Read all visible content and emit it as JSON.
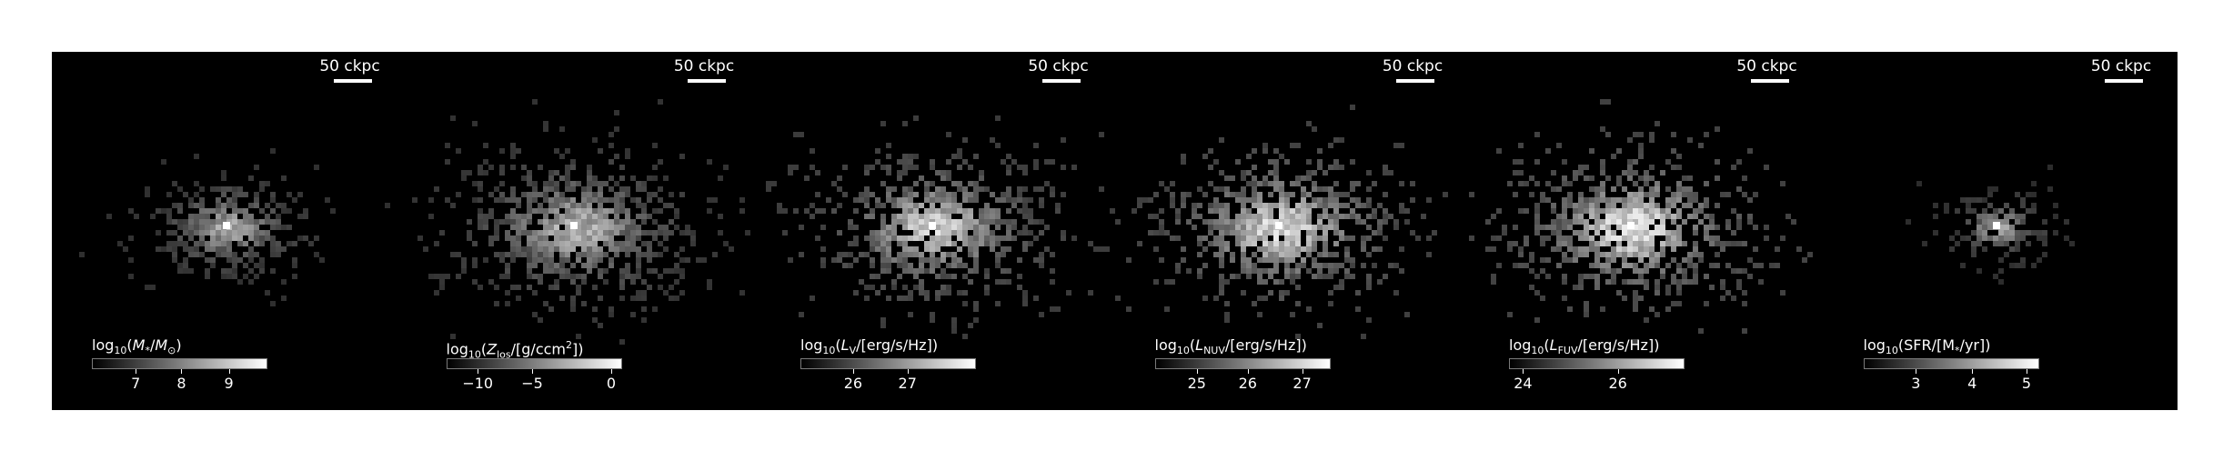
{
  "scalebar_label": "50 ckpc",
  "panels": [
    {
      "label_html": "log<sub>10</sub>(<i>M</i><sub>*</sub>/<i>M</i><sub>⊙</sub>)",
      "ticks": [
        [
          "7",
          0.25
        ],
        [
          "8",
          0.51
        ],
        [
          "9",
          0.78
        ]
      ],
      "spread": 0.7,
      "gain": 0.8
    },
    {
      "label_html": "log<sub>10</sub>(<i>Z</i><sub>los</sub>/[g/ccm<sup>2</sup>])",
      "ticks": [
        [
          "−10",
          0.18
        ],
        [
          "−5",
          0.49
        ],
        [
          "0",
          0.94
        ]
      ],
      "spread": 1.05,
      "gain": 0.85
    },
    {
      "label_html": "log<sub>10</sub>(<i>L</i><sub>V</sub>/[erg/s/Hz])",
      "ticks": [
        [
          "26",
          0.3
        ],
        [
          "27",
          0.61
        ]
      ],
      "spread": 1.0,
      "gain": 1.0
    },
    {
      "label_html": "log<sub>10</sub>(<i>L</i><sub>NUV</sub>/[erg/s/Hz])",
      "ticks": [
        [
          "25",
          0.24
        ],
        [
          "26",
          0.53
        ],
        [
          "27",
          0.84
        ]
      ],
      "spread": 1.05,
      "gain": 1.05
    },
    {
      "label_html": "log<sub>10</sub>(<i>L</i><sub>FUV</sub>/[erg/s/Hz])",
      "ticks": [
        [
          "24",
          0.08
        ],
        [
          "26",
          0.62
        ]
      ],
      "spread": 1.05,
      "gain": 1.1
    },
    {
      "label_html": "log<sub>10</sub>(SFR/[M<sub>*</sub>/yr])",
      "ticks": [
        [
          "3",
          0.3
        ],
        [
          "4",
          0.62
        ],
        [
          "5",
          0.93
        ]
      ],
      "spread": 0.5,
      "gain": 0.75
    }
  ]
}
